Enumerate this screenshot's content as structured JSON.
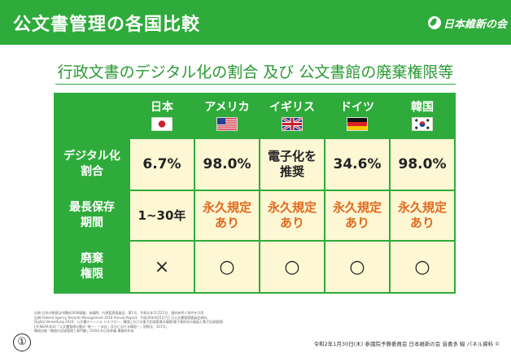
{
  "header": {
    "title": "公文書管理の各国比較",
    "logo_text": "日本維新の会",
    "bg_color": "#2eab3a"
  },
  "subtitle": "行政文書のデジタル化の割合 及び 公文書館の廃棄権限等",
  "table": {
    "countries": [
      {
        "name": "日本",
        "flag": "japan-flag-icon"
      },
      {
        "name": "アメリカ",
        "flag": "usa-flag-icon"
      },
      {
        "name": "イギリス",
        "flag": "uk-flag-icon"
      },
      {
        "name": "ドイツ",
        "flag": "germany-flag-icon"
      },
      {
        "name": "韓国",
        "flag": "korea-flag-icon"
      }
    ],
    "rows": [
      {
        "label_line1": "デジタル化",
        "label_line2": "割合",
        "cells": [
          [
            "6.7%"
          ],
          [
            "98.0%"
          ],
          [
            "電子化を",
            "推奨"
          ],
          [
            "34.6%"
          ],
          [
            "98.0%"
          ]
        ]
      },
      {
        "label_line1": "最長保存",
        "label_line2": "期間",
        "cells": [
          [
            "1~30年"
          ],
          [
            "永久規定",
            "あり"
          ],
          [
            "永久規定",
            "あり"
          ],
          [
            "永久規定",
            "あり"
          ],
          [
            "永久規定",
            "あり"
          ]
        ]
      },
      {
        "label_line1": "廃棄",
        "label_line2": "権限",
        "cells": [
          [
            "×"
          ],
          [
            "○"
          ],
          [
            "○"
          ],
          [
            "○"
          ],
          [
            "○"
          ]
        ]
      }
    ]
  },
  "notes": [
    "出典:日本の数値は内閣府2008調査、参議院、行政監察委員会、第1号、令和元年11月25日、政府参考人答弁を引用",
    "出典:Federal Agency Records Management 2018 Annual Report、平成30年9月6日7日 日公文書管理委員会資料、",
    "Digital Verwaltung 2020、公文書のリーハル ドルフロー、韓国における電子記録管理の展開(電子政府化の進展と電子記録管理)",
    "J-R-NEAR(4/4)「公文書管理の動向 -統一・一本化」及びにおける韓国一」国際法、101号。",
    "韓国法制「韓国の記録管理と専門職」(2004,4)日本参議 事務所作成"
  ],
  "page_number": "①",
  "footer": "令和2年1月30日(木) 参議院予算委員会 日本維新の会 音喜多 駿 パネル資料 ①"
}
